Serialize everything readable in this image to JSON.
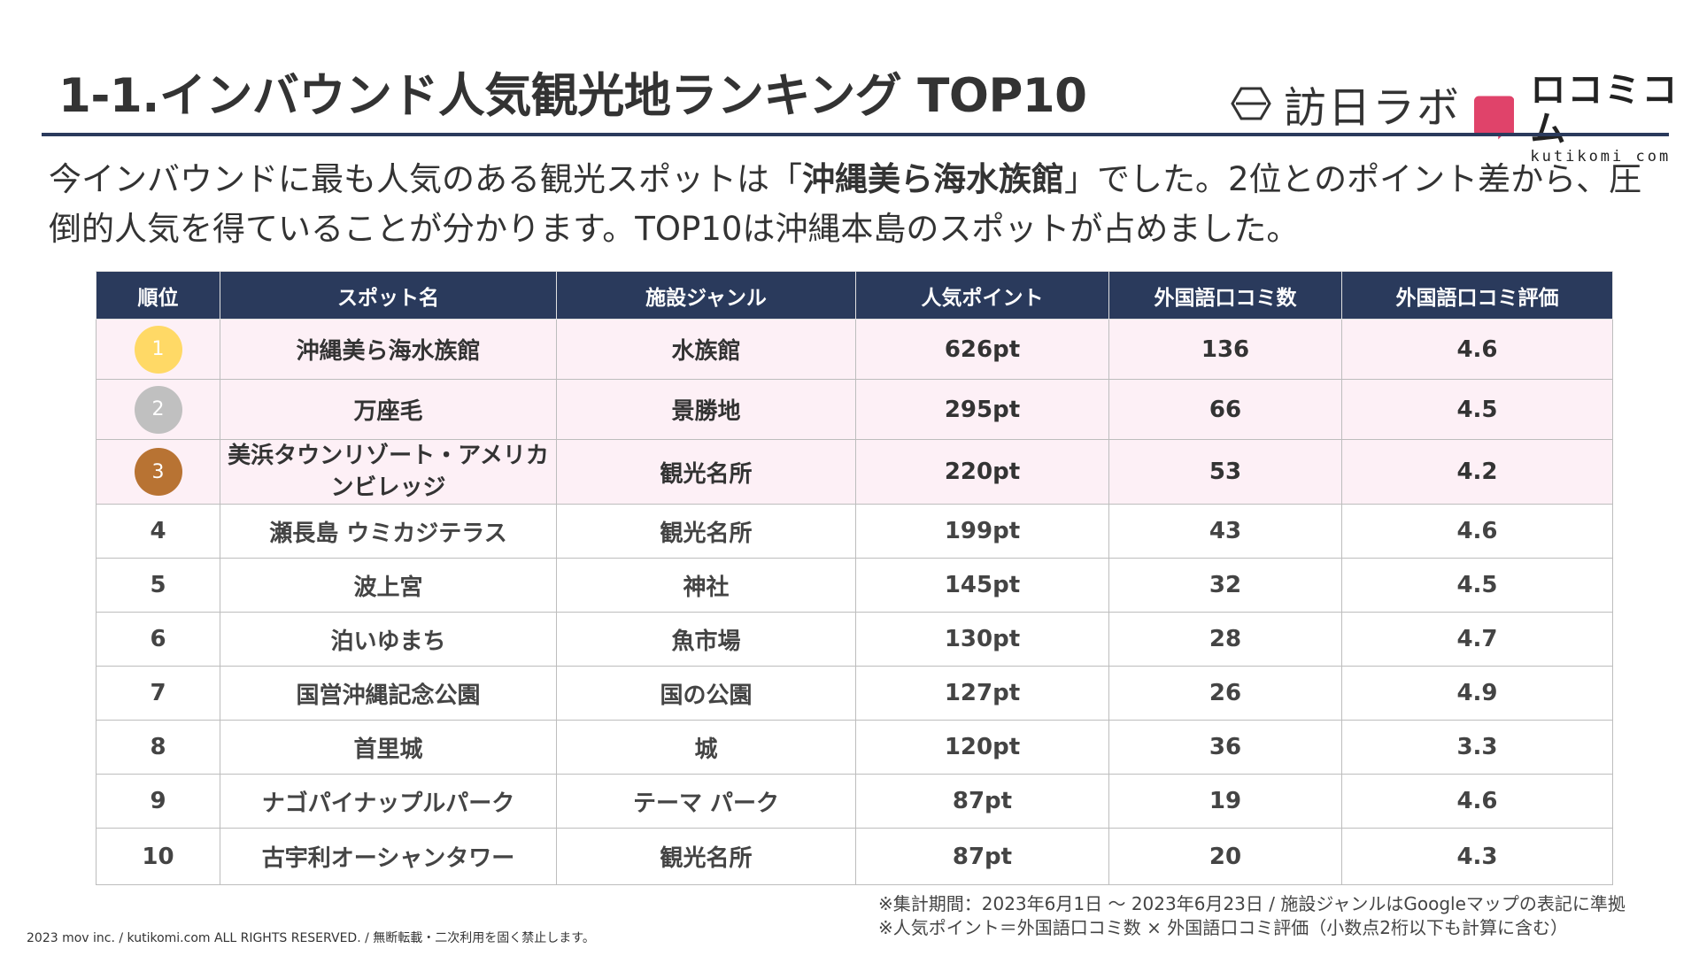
{
  "title": "1-1.インバウンド人気観光地ランキング TOP10",
  "logos": {
    "left_text": "訪日ラボ",
    "right_text": "ロコミコム",
    "right_sub": "kutikomi com",
    "right_mark_color": "#e0436a"
  },
  "lead": {
    "part1": "今インバウンドに最も人気のある観光スポットは「",
    "highlight": "沖縄美ら海水族館",
    "part2": "」でした。2位とのポイント差から、圧倒的人気を得ていることが分かります。TOP10は沖縄本島のスポットが占めました。"
  },
  "table": {
    "headers": [
      "順位",
      "スポット名",
      "施設ジャンル",
      "人気ポイント",
      "外国語口コミ数",
      "外国語口コミ評価"
    ],
    "rows": [
      {
        "rank": "1",
        "name": "沖縄美ら海水族館",
        "genre": "水族館",
        "points": "626pt",
        "reviews": "136",
        "rating": "4.6"
      },
      {
        "rank": "2",
        "name": "万座毛",
        "genre": "景勝地",
        "points": "295pt",
        "reviews": "66",
        "rating": "4.5"
      },
      {
        "rank": "3",
        "name": "美浜タウンリゾート・アメリカンビレッジ",
        "genre": "観光名所",
        "points": "220pt",
        "reviews": "53",
        "rating": "4.2"
      },
      {
        "rank": "4",
        "name": "瀬長島 ウミカジテラス",
        "genre": "観光名所",
        "points": "199pt",
        "reviews": "43",
        "rating": "4.6"
      },
      {
        "rank": "5",
        "name": "波上宮",
        "genre": "神社",
        "points": "145pt",
        "reviews": "32",
        "rating": "4.5"
      },
      {
        "rank": "6",
        "name": "泊いゆまち",
        "genre": "魚市場",
        "points": "130pt",
        "reviews": "28",
        "rating": "4.7"
      },
      {
        "rank": "7",
        "name": "国営沖縄記念公園",
        "genre": "国の公園",
        "points": "127pt",
        "reviews": "26",
        "rating": "4.9"
      },
      {
        "rank": "8",
        "name": "首里城",
        "genre": "城",
        "points": "120pt",
        "reviews": "36",
        "rating": "3.3"
      },
      {
        "rank": "9",
        "name": "ナゴパイナップルパーク",
        "genre": "テーマ パーク",
        "points": "87pt",
        "reviews": "19",
        "rating": "4.6"
      },
      {
        "rank": "10",
        "name": "古宇利オーシャンタワー",
        "genre": "観光名所",
        "points": "87pt",
        "reviews": "20",
        "rating": "4.3"
      }
    ],
    "medal_colors": [
      "#ffd966",
      "#c0c0c0",
      "#b87333"
    ],
    "header_color": "#2a3a5c",
    "highlight_row_color": "#fdf0f6"
  },
  "notes": [
    "※集計期間：2023年6月1日 〜 2023年6月23日 / 施設ジャンルはGoogleマップの表記に準拠",
    "※人気ポイント＝外国語口コミ数 × 外国語口コミ評価（小数点2桁以下も計算に含む）"
  ],
  "copyright": "2023 mov inc. / kutikomi.com ALL RIGHTS RESERVED. / 無断転載・二次利用を固く禁止します。"
}
